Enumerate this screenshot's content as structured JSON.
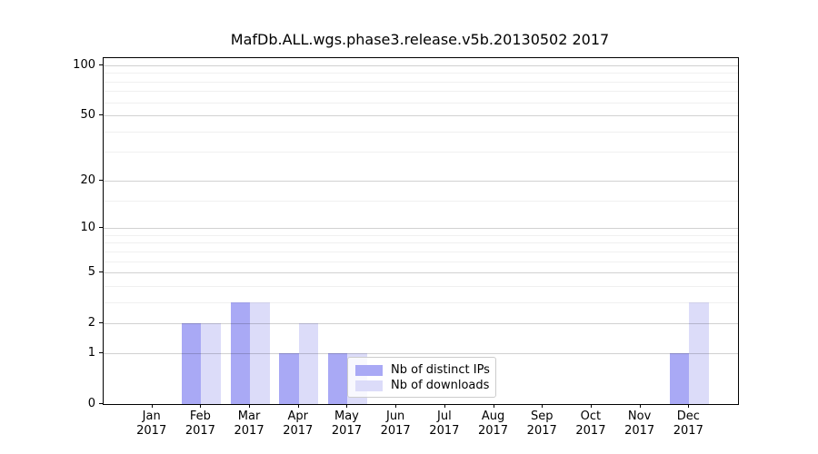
{
  "chart_data": {
    "type": "bar",
    "title": "MafDb.ALL.wgs.phase3.release.v5b.20130502 2017",
    "categories": [
      "Jan 2017",
      "Feb 2017",
      "Mar 2017",
      "Apr 2017",
      "May 2017",
      "Jun 2017",
      "Jul 2017",
      "Aug 2017",
      "Sep 2017",
      "Oct 2017",
      "Nov 2017",
      "Dec 2017"
    ],
    "series": [
      {
        "name": "Nb of distinct IPs",
        "color": "#a9a9f5",
        "values": [
          0,
          2,
          3,
          1,
          1,
          0,
          0,
          0,
          0,
          0,
          0,
          1
        ]
      },
      {
        "name": "Nb of downloads",
        "color": "#dcdcf9",
        "values": [
          0,
          2,
          3,
          2,
          1,
          0,
          0,
          0,
          0,
          0,
          0,
          3
        ]
      }
    ],
    "y_scale": "log1p",
    "y_major_ticks": [
      0,
      1,
      2,
      5,
      10,
      20,
      50,
      100
    ],
    "y_minor_ticks": [
      3,
      4,
      6,
      7,
      8,
      9,
      15,
      30,
      40,
      60,
      70,
      80,
      90
    ],
    "ylim": [
      0,
      110
    ],
    "xlabel": "",
    "ylabel": "",
    "grid": "on",
    "grid_above_bars": true,
    "legend_position": "inside lower-center",
    "colors": {
      "major_grid": "#d1d1d1",
      "minor_grid": "#ededed",
      "axis": "#000000",
      "legend_border": "#cccccc"
    }
  }
}
